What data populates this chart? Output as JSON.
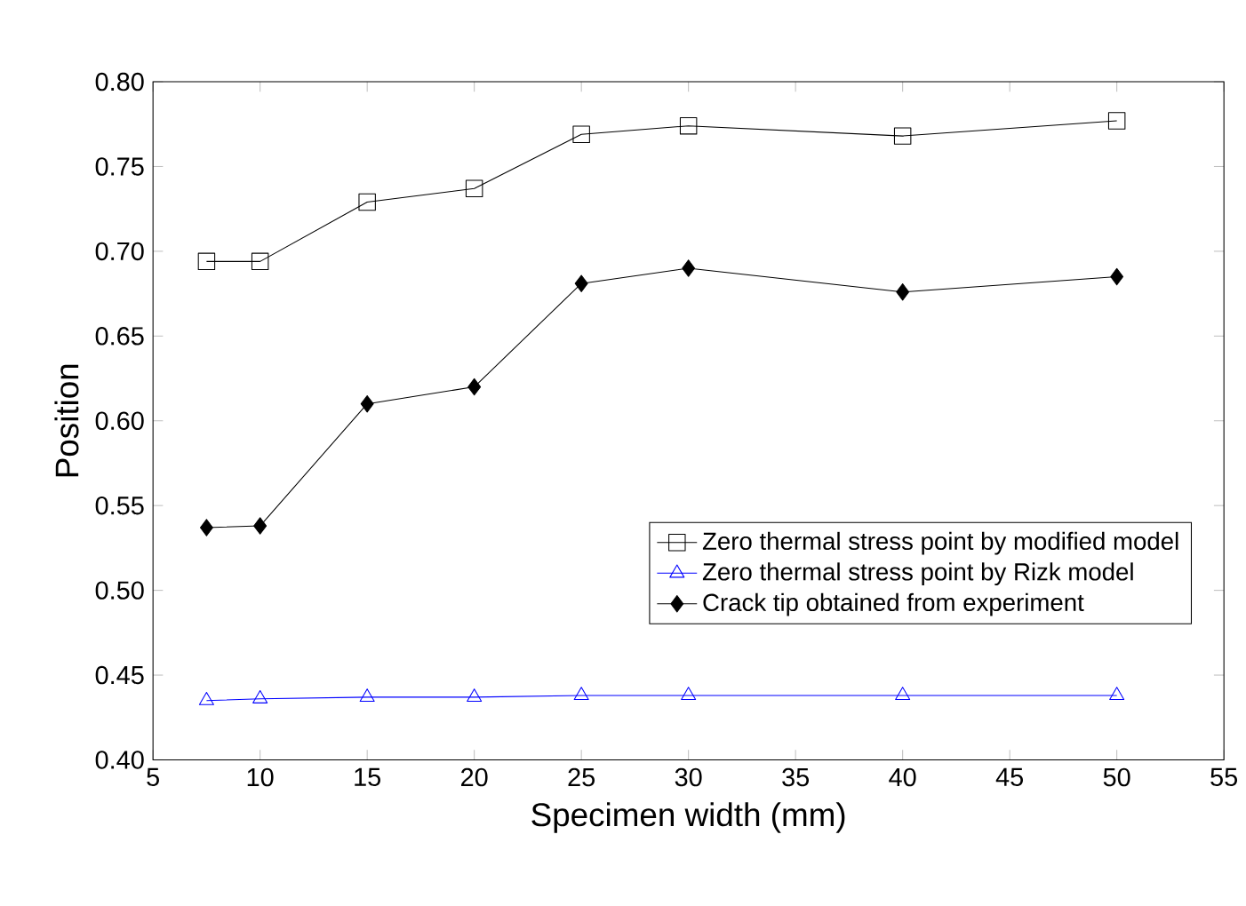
{
  "chart_data": {
    "type": "line",
    "xlabel": "Specimen width (mm)",
    "ylabel": "Position",
    "x": [
      7.5,
      10,
      15,
      20,
      25,
      30,
      40,
      50
    ],
    "series": [
      {
        "name": "Zero thermal stress point by modified model",
        "color": "#000000",
        "marker": "square",
        "values": [
          0.694,
          0.694,
          0.729,
          0.737,
          0.769,
          0.774,
          0.768,
          0.777
        ]
      },
      {
        "name": "Zero thermal stress point by Rizk model",
        "color": "#0000ff",
        "marker": "triangle",
        "values": [
          0.435,
          0.436,
          0.437,
          0.437,
          0.438,
          0.438,
          0.438,
          0.438
        ]
      },
      {
        "name": "Crack tip obtained from experiment",
        "color": "#000000",
        "marker": "diamond",
        "values": [
          0.537,
          0.538,
          0.61,
          0.62,
          0.681,
          0.69,
          0.676,
          0.685
        ]
      }
    ],
    "xlim": [
      5,
      55
    ],
    "xticks": [
      5,
      10,
      15,
      20,
      25,
      30,
      35,
      40,
      45,
      50,
      55
    ],
    "ylim": [
      0.4,
      0.8
    ],
    "yticks": [
      {
        "value": 0.4,
        "label": "0.40"
      },
      {
        "value": 0.45,
        "label": "0.45"
      },
      {
        "value": 0.5,
        "label": "0.50"
      },
      {
        "value": 0.55,
        "label": "0.55"
      },
      {
        "value": 0.6,
        "label": "0.60"
      },
      {
        "value": 0.65,
        "label": "0.65"
      },
      {
        "value": 0.7,
        "label": "0.70"
      },
      {
        "value": 0.75,
        "label": "0.75"
      },
      {
        "value": 0.8,
        "label": "0.80"
      }
    ],
    "grid": false,
    "legend": "bottom right",
    "line_style": "solid"
  }
}
